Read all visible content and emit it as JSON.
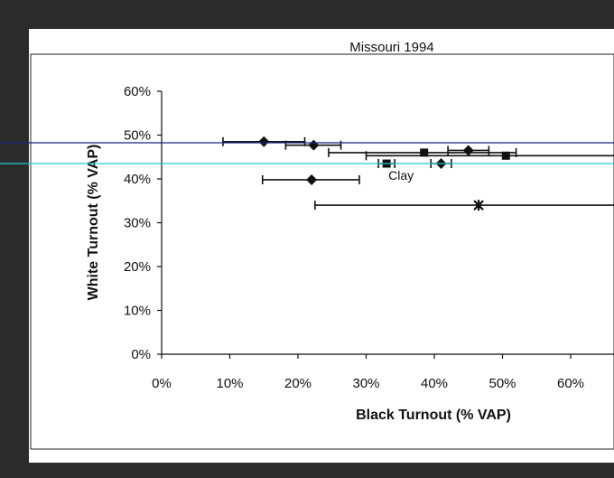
{
  "chart_data": {
    "type": "scatter",
    "title": "Missouri 1994",
    "xlabel": "Black Turnout (% VAP)",
    "ylabel": "White Turnout (% VAP)",
    "xlim": [
      0,
      70
    ],
    "ylim": [
      0,
      60
    ],
    "x_ticks": [
      "0%",
      "10%",
      "20%",
      "30%",
      "40%",
      "50%",
      "60%"
    ],
    "y_ticks": [
      "0%",
      "10%",
      "20%",
      "30%",
      "40%",
      "50%",
      "60%"
    ],
    "grid": false,
    "points": [
      {
        "x": 15,
        "y": 48.5,
        "x_low": 9,
        "x_high": 21,
        "marker": "diamond",
        "label": ""
      },
      {
        "x": 22.3,
        "y": 47.7,
        "x_low": 18.2,
        "x_high": 26.3,
        "marker": "diamond",
        "label": ""
      },
      {
        "x": 22,
        "y": 39.8,
        "x_low": 14.8,
        "x_high": 29,
        "marker": "diamond",
        "label": ""
      },
      {
        "x": 33,
        "y": 43.5,
        "x_low": 31.8,
        "x_high": 34.2,
        "marker": "square",
        "label": "Clay"
      },
      {
        "x": 38.5,
        "y": 46,
        "x_low": 24.5,
        "x_high": 52,
        "marker": "square",
        "label": ""
      },
      {
        "x": 41,
        "y": 43.5,
        "x_low": 39.5,
        "x_high": 42.5,
        "marker": "diamond",
        "label": ""
      },
      {
        "x": 45,
        "y": 46.5,
        "x_low": 42,
        "x_high": 48,
        "marker": "diamond",
        "label": ""
      },
      {
        "x": 50.5,
        "y": 45.3,
        "x_low": 30,
        "x_high": 70,
        "marker": "square",
        "label": ""
      },
      {
        "x": 46.5,
        "y": 34,
        "x_low": 22.5,
        "x_high": 70,
        "marker": "star",
        "label": ""
      }
    ]
  },
  "overlay": {
    "guide_line_1_color": "#1a237e",
    "guide_line_2_color": "#26c6da"
  }
}
